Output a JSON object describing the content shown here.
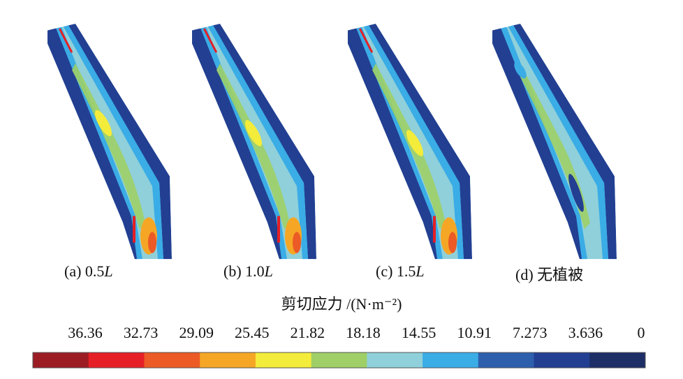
{
  "panels": [
    {
      "prefix": "(a) 0.5",
      "unit": "L"
    },
    {
      "prefix": "(b) 1.0",
      "unit": "L"
    },
    {
      "prefix": "(c) 1.5",
      "unit": "L"
    },
    {
      "prefix": "(d) 无植被",
      "unit": ""
    }
  ],
  "legend": {
    "title": "剪切应力 /(N·m⁻²)",
    "ticks": [
      "36.36",
      "32.73",
      "29.09",
      "25.45",
      "21.82",
      "18.18",
      "14.55",
      "10.91",
      "7.273",
      "3.636",
      "0"
    ],
    "colors": [
      "#9c1c24",
      "#e51f25",
      "#ec5a26",
      "#f6a625",
      "#f4ec3b",
      "#9fcf66",
      "#8fd0da",
      "#3aace6",
      "#2d5fac",
      "#223f92",
      "#1d2d66"
    ]
  }
}
